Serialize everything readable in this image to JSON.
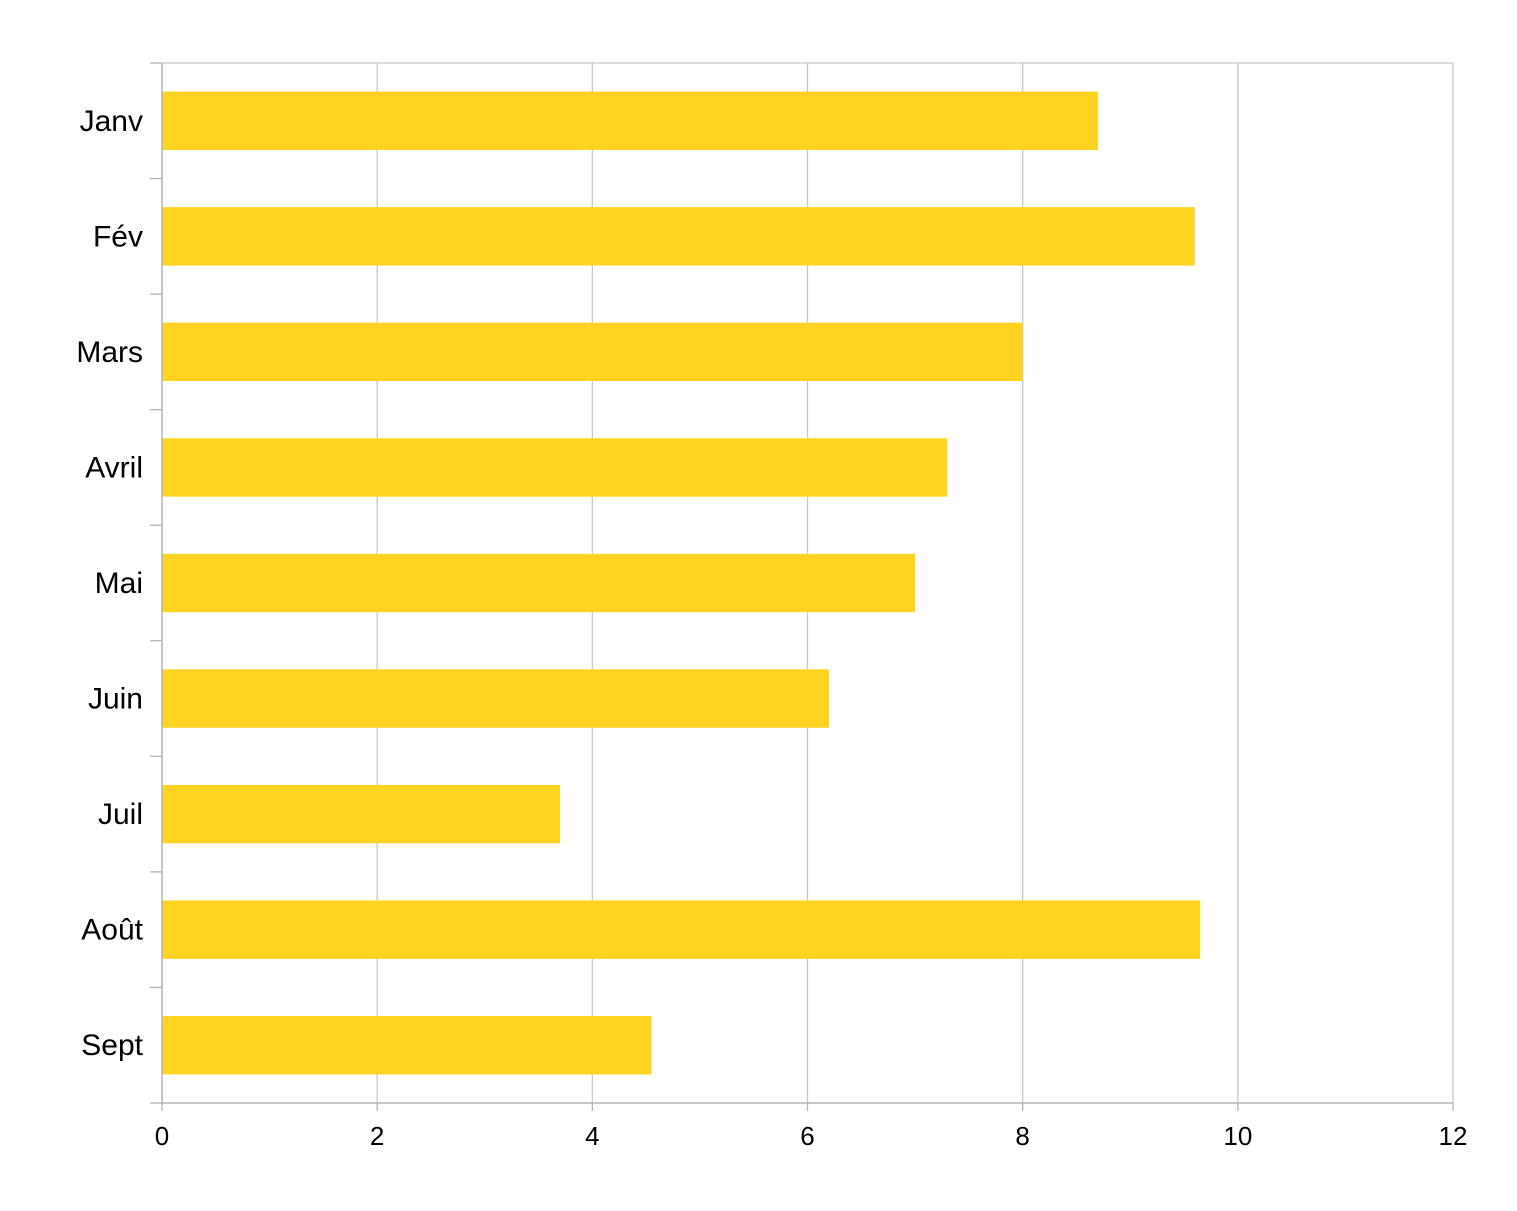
{
  "chart_data": {
    "type": "bar",
    "orientation": "horizontal",
    "categories": [
      "Janv",
      "Fév",
      "Mars",
      "Avril",
      "Mai",
      "Juin",
      "Juil",
      "Août",
      "Sept"
    ],
    "values": [
      8.7,
      9.6,
      8.0,
      7.3,
      7.0,
      6.2,
      3.7,
      9.65,
      4.55
    ],
    "xlim": [
      0,
      12
    ],
    "xticks": [
      0,
      2,
      4,
      6,
      8,
      10,
      12
    ],
    "title": "",
    "xlabel": "",
    "ylabel": "",
    "grid": "vertical",
    "legend": "none",
    "colors": {
      "bar": "#FFD320",
      "grid": "#C8C8C8",
      "axis": "#B3B3B3"
    }
  }
}
